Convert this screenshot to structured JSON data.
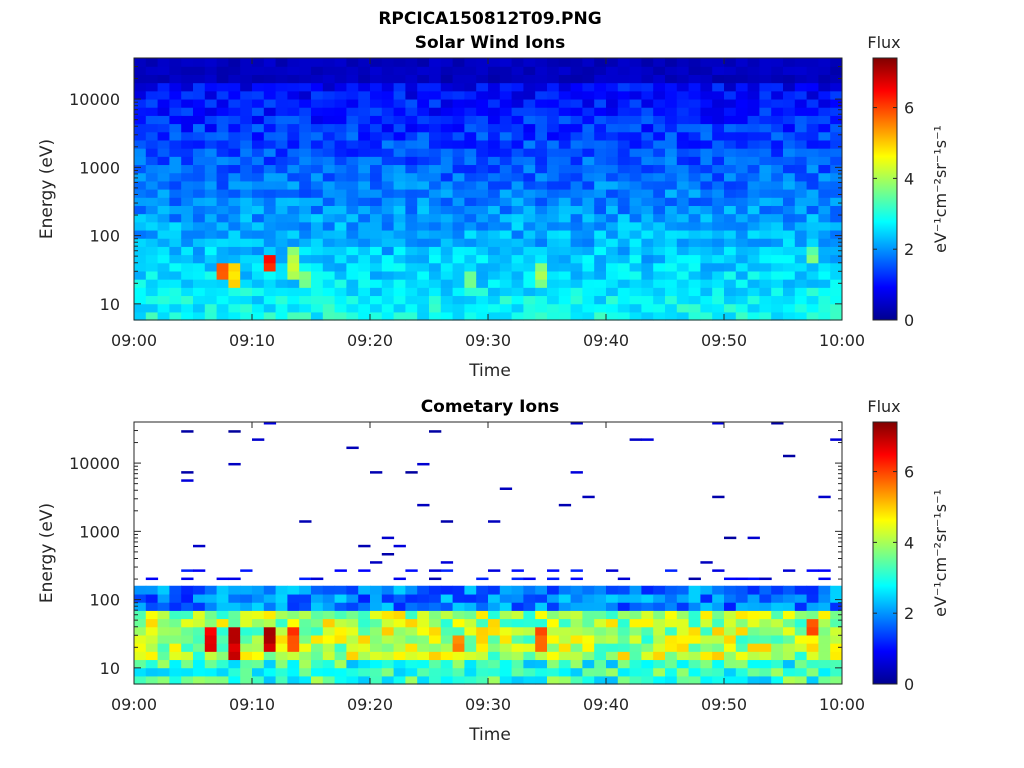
{
  "figure_title": "RPCICA150812T09.PNG",
  "colorbar": {
    "title": "Flux",
    "unit": "eV⁻¹cm⁻²sr⁻¹s⁻¹",
    "ticks": [
      "0",
      "2",
      "4",
      "6"
    ],
    "range": [
      0,
      7.4
    ],
    "colormap": "jet"
  },
  "chart_data": [
    {
      "type": "heatmap",
      "title": "Solar Wind Ions",
      "xlabel": "Time",
      "ylabel": "Energy (eV)",
      "x_ticks": [
        "09:00",
        "09:10",
        "09:20",
        "09:30",
        "09:40",
        "09:50",
        "10:00"
      ],
      "x_range": [
        "09:00",
        "10:00"
      ],
      "y_scale": "log",
      "y_ticks": [
        "10",
        "100",
        "1000",
        "10000"
      ],
      "y_range": [
        5.8,
        40000
      ],
      "time_bins": 60,
      "energy_bins": 32,
      "background_level": 2.6,
      "notes": "Flux 2–3 at low energies, decreasing to ~0.3 near 40 keV",
      "features": [
        {
          "time": "09:07",
          "energy_range": [
            25,
            45
          ],
          "flux": 5.8
        },
        {
          "time": "09:08",
          "energy_range": [
            18,
            35
          ],
          "flux": 5.0
        },
        {
          "time": "09:11",
          "energy_range": [
            28,
            50
          ],
          "flux": 6.3
        },
        {
          "time": "09:13",
          "energy_range": [
            25,
            70
          ],
          "flux": 4.0
        },
        {
          "time": "09:14",
          "energy_range": [
            16,
            30
          ],
          "flux": 3.8
        },
        {
          "time": "09:28",
          "energy_range": [
            18,
            30
          ],
          "flux": 3.6
        },
        {
          "time": "09:34",
          "energy_range": [
            20,
            40
          ],
          "flux": 3.8
        },
        {
          "time": "09:57",
          "energy_range": [
            45,
            65
          ],
          "flux": 3.6
        }
      ]
    },
    {
      "type": "heatmap",
      "title": "Cometary Ions",
      "xlabel": "Time",
      "ylabel": "Energy (eV)",
      "x_ticks": [
        "09:00",
        "09:10",
        "09:20",
        "09:30",
        "09:40",
        "09:50",
        "10:00"
      ],
      "x_range": [
        "09:00",
        "10:00"
      ],
      "y_scale": "log",
      "y_ticks": [
        "10",
        "100",
        "1000",
        "10000"
      ],
      "y_range": [
        5.8,
        40000
      ],
      "time_bins": 60,
      "energy_bins": 32,
      "notes": "Dense flux below ~150 eV peaking at 10–60 eV; sparse low-flux detections above",
      "features": [
        {
          "time": "09:06",
          "energy_range": [
            20,
            40
          ],
          "flux": 6.5
        },
        {
          "time": "09:08",
          "energy_range": [
            14,
            35
          ],
          "flux": 6.8
        },
        {
          "time": "09:11",
          "energy_range": [
            20,
            45
          ],
          "flux": 7.0
        },
        {
          "time": "09:13",
          "energy_range": [
            18,
            40
          ],
          "flux": 6.0
        },
        {
          "time": "09:27",
          "energy_range": [
            18,
            30
          ],
          "flux": 5.5
        },
        {
          "time": "09:34",
          "energy_range": [
            18,
            40
          ],
          "flux": 5.8
        },
        {
          "time": "09:57",
          "energy_range": [
            30,
            50
          ],
          "flux": 5.8
        }
      ]
    }
  ]
}
